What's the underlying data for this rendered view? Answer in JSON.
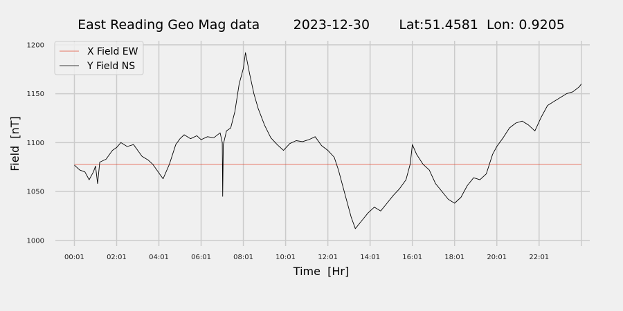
{
  "chart_data": {
    "type": "line",
    "title": "East Reading Geo Mag data        2023-12-30       Lat:51.4581  Lon: 0.9205",
    "xlabel": "Time  [Hr]",
    "ylabel": "Field  [nT]",
    "x_ticks": [
      "00:01",
      "02:01",
      "04:01",
      "06:01",
      "08:01",
      "10:01",
      "12:01",
      "14:01",
      "16:01",
      "18:01",
      "20:01",
      "22:01"
    ],
    "x_unit": "hours",
    "xlim": [
      -0.9,
      24.4
    ],
    "ylim": [
      997,
      1207
    ],
    "y_ticks": [
      1000,
      1050,
      1100,
      1150,
      1200
    ],
    "grid": true,
    "legend_position": "top-left",
    "colors": {
      "x_field": "#e24a33",
      "y_field": "#000000",
      "background": "#f0f0f0",
      "grid": "#cbcbcb"
    },
    "series": [
      {
        "name": "X Field EW",
        "color": "#e24a33",
        "x": [
          0.0,
          24.0
        ],
        "y": [
          1078,
          1078
        ]
      },
      {
        "name": "Y Field NS",
        "color": "#000000",
        "x": [
          0.0,
          0.25,
          0.5,
          0.7,
          0.9,
          1.0,
          1.1,
          1.2,
          1.5,
          1.8,
          2.0,
          2.2,
          2.5,
          2.8,
          3.0,
          3.2,
          3.5,
          3.7,
          3.9,
          4.0,
          4.2,
          4.5,
          4.8,
          5.0,
          5.2,
          5.5,
          5.8,
          6.0,
          6.3,
          6.6,
          6.9,
          7.0,
          7.02,
          7.05,
          7.2,
          7.4,
          7.6,
          7.8,
          8.0,
          8.1,
          8.3,
          8.5,
          8.7,
          9.0,
          9.3,
          9.6,
          9.9,
          10.2,
          10.5,
          10.8,
          11.1,
          11.4,
          11.7,
          12.0,
          12.3,
          12.5,
          12.7,
          12.9,
          13.1,
          13.3,
          13.6,
          13.9,
          14.2,
          14.5,
          14.8,
          15.1,
          15.4,
          15.7,
          15.9,
          16.0,
          16.2,
          16.5,
          16.8,
          17.1,
          17.4,
          17.7,
          18.0,
          18.3,
          18.6,
          18.9,
          19.2,
          19.5,
          19.8,
          20.0,
          20.3,
          20.6,
          20.9,
          21.2,
          21.5,
          21.8,
          22.1,
          22.4,
          22.7,
          23.0,
          23.3,
          23.6,
          23.9,
          24.0
        ],
        "y": [
          1077,
          1072,
          1070,
          1062,
          1070,
          1076,
          1058,
          1080,
          1083,
          1092,
          1095,
          1100,
          1096,
          1098,
          1092,
          1086,
          1082,
          1078,
          1072,
          1069,
          1063,
          1078,
          1098,
          1104,
          1108,
          1104,
          1107,
          1103,
          1106,
          1105,
          1110,
          1100,
          1045,
          1098,
          1112,
          1115,
          1132,
          1160,
          1176,
          1192,
          1170,
          1150,
          1135,
          1118,
          1105,
          1098,
          1092,
          1099,
          1102,
          1101,
          1103,
          1106,
          1097,
          1092,
          1085,
          1072,
          1056,
          1040,
          1024,
          1012,
          1020,
          1028,
          1034,
          1030,
          1038,
          1046,
          1053,
          1062,
          1078,
          1098,
          1088,
          1078,
          1072,
          1058,
          1050,
          1042,
          1038,
          1044,
          1056,
          1064,
          1062,
          1068,
          1088,
          1096,
          1105,
          1115,
          1120,
          1122,
          1118,
          1112,
          1126,
          1138,
          1142,
          1146,
          1150,
          1152,
          1157,
          1160
        ]
      }
    ]
  }
}
